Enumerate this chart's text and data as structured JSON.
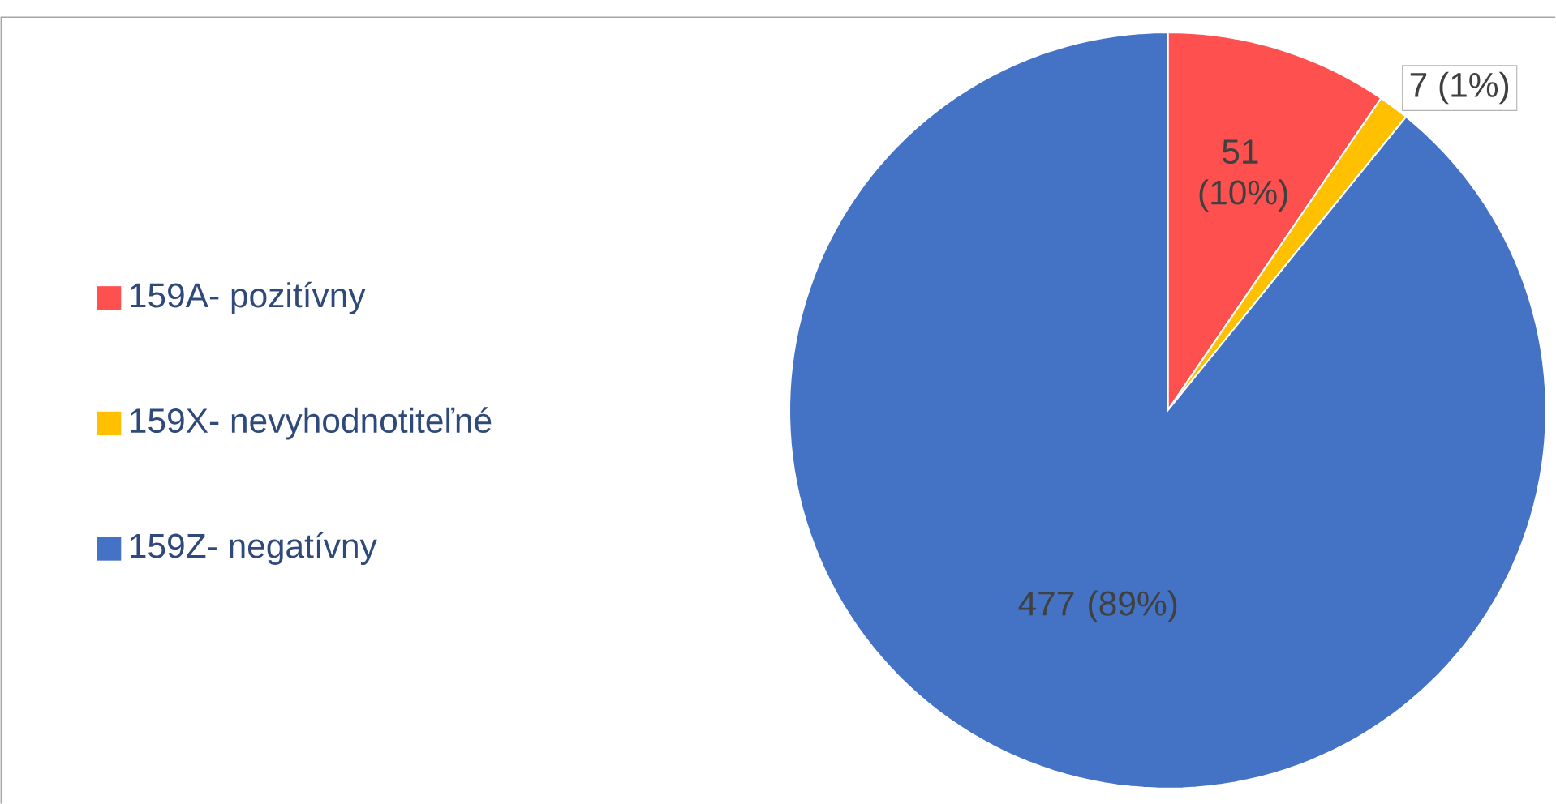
{
  "chart_data": {
    "type": "pie",
    "categories": [
      "159A- pozitívny",
      "159X- nevyhodnotiteľné",
      "159Z- negatívny"
    ],
    "values": [
      51,
      7,
      477
    ],
    "value_labels": [
      "51 (10%)",
      "7 (1%)",
      "477 (89%)"
    ],
    "colors": [
      "#ff5050",
      "#ffc000",
      "#4472c4"
    ],
    "legend": "left"
  }
}
